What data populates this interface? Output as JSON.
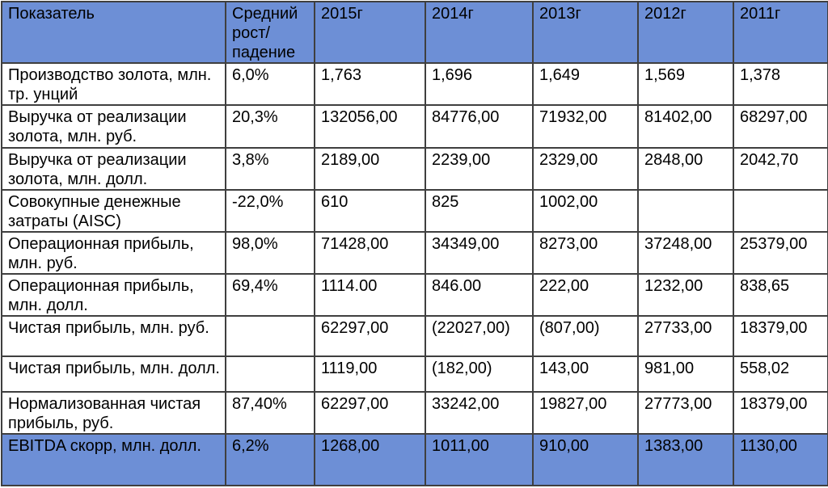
{
  "colors": {
    "header_bg": "#6D8FD6",
    "highlight_row_bg": "#6D8FD6",
    "border": "#3F3F3F",
    "text": "#000000"
  },
  "table": {
    "header": {
      "indicator_label": "Показатель",
      "growth_label": "Средний рост/ падение",
      "year_labels": [
        "2015г",
        "2014г",
        "2013г",
        "2012г",
        "2011г"
      ]
    },
    "rows": [
      {
        "indicator": "Производство золота, млн. тр. унций",
        "growth": "6,0%",
        "values": [
          "1,763",
          "1,696",
          "1,649",
          "1,569",
          "1,378"
        ],
        "highlight": false
      },
      {
        "indicator": "Выручка от реализации золота, млн. руб.",
        "growth": "20,3%",
        "values": [
          "132056,00",
          "84776,00",
          "71932,00",
          "81402,00",
          "68297,00"
        ],
        "highlight": false
      },
      {
        "indicator": "Выручка от реализации золота, млн. долл.",
        "growth": "3,8%",
        "values": [
          "2189,00",
          "2239,00",
          "2329,00",
          "2848,00",
          "2042,70"
        ],
        "highlight": false
      },
      {
        "indicator": "Совокупные денежные затраты (AISC)",
        "growth": "-22,0%",
        "values": [
          "610",
          "825",
          "1002,00",
          "",
          ""
        ],
        "highlight": false
      },
      {
        "indicator": "Операционная прибыль, млн. руб.",
        "growth": "98,0%",
        "values": [
          "71428,00",
          "34349,00",
          "8273,00",
          "37248,00",
          "25379,00"
        ],
        "highlight": false
      },
      {
        "indicator": "Операционная прибыль, млн. долл.",
        "growth": "69,4%",
        "values": [
          "1114.00",
          "846.00",
          "222,00",
          "1232,00",
          "838,65"
        ],
        "highlight": false
      },
      {
        "indicator": "Чистая прибыль, млн. руб.",
        "growth": "",
        "values": [
          "62297,00",
          "(22027,00)",
          "(807,00)",
          "27733,00",
          "18379,00"
        ],
        "highlight": false
      },
      {
        "indicator": "Чистая прибыль, млн. долл.",
        "growth": "",
        "values": [
          "1119,00",
          "(182,00)",
          "143,00",
          "981,00",
          "558,02"
        ],
        "highlight": false
      },
      {
        "indicator": "Нормализованная чистая прибыль, руб.",
        "growth": "87,40%",
        "values": [
          "62297,00",
          "33242,00",
          "19827,00",
          "27773,00",
          "18379,00"
        ],
        "highlight": false
      },
      {
        "indicator": "EBITDA скорр, млн. долл.",
        "growth": "6,2%",
        "values": [
          "1268,00",
          "1011,00",
          "910,00",
          "1383,00",
          "1130,00"
        ],
        "highlight": true
      }
    ]
  }
}
